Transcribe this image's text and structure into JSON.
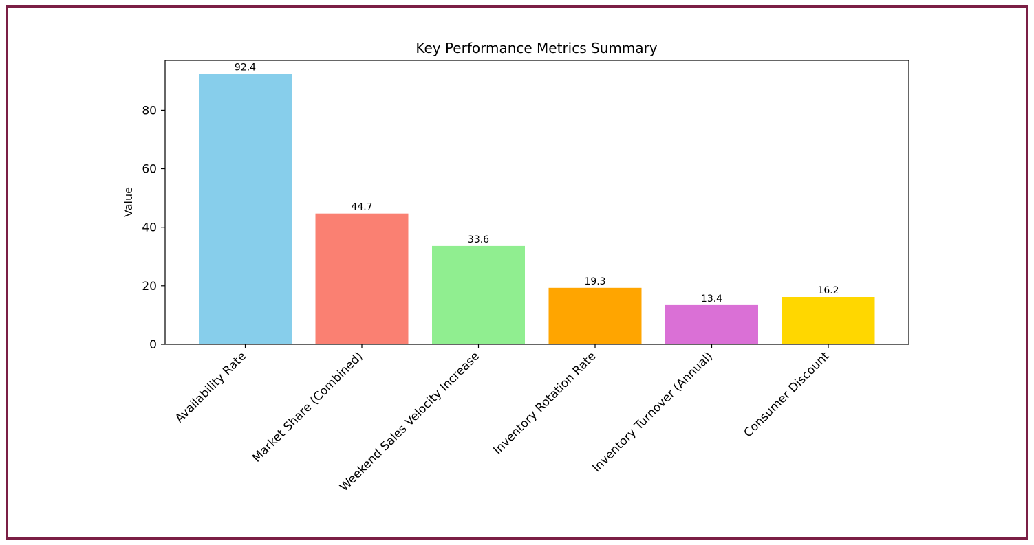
{
  "chart_data": {
    "type": "bar",
    "title": "Key Performance Metrics Summary",
    "xlabel": "",
    "ylabel": "Value",
    "ylim": [
      0,
      97
    ],
    "yticks": [
      0,
      20,
      40,
      60,
      80
    ],
    "grid": false,
    "legend": "none",
    "categories": [
      "Availability Rate",
      "Market Share (Combined)",
      "Weekend Sales Velocity Increase",
      "Inventory Rotation Rate",
      "Inventory Turnover (Annual)",
      "Consumer Discount"
    ],
    "values": [
      92.4,
      44.7,
      33.6,
      19.3,
      13.4,
      16.2
    ],
    "value_labels": [
      "92.4",
      "44.7",
      "33.6",
      "19.3",
      "13.4",
      "16.2"
    ],
    "colors": [
      "#87ceeb",
      "#fa8072",
      "#90ee90",
      "#ffa500",
      "#da70d6",
      "#ffd700"
    ]
  },
  "frame_color": "#7b1f45"
}
